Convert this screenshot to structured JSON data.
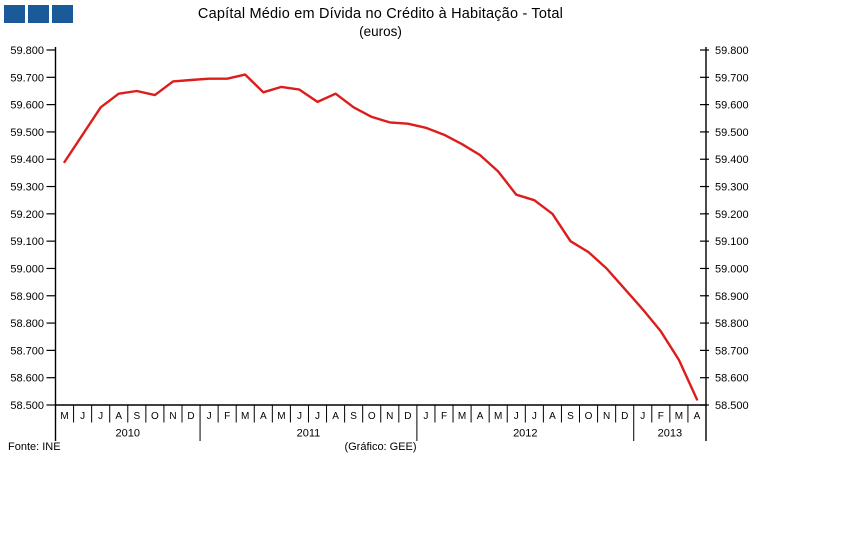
{
  "logo": {
    "color": "#1A5A99",
    "square_count": 3
  },
  "title": "Capítal Médio em Dívida no Crédito à Habitação - Total",
  "subtitle": "(euros)",
  "footer": {
    "source": "Fonte: INE",
    "credit": "(Gráfico: GEE)"
  },
  "chart_data": {
    "type": "line",
    "title": "Capítal Médio em Dívida no Crédito à Habitação - Total",
    "subtitle": "(euros)",
    "series_name": "Capital médio em dívida (euros)",
    "series_color": "#DD1C1C",
    "axis_color": "#000000",
    "ylim": [
      58500,
      59800
    ],
    "ytick_step": 100,
    "ytick_labels": [
      "59.800",
      "59.700",
      "59.600",
      "59.500",
      "59.400",
      "59.300",
      "59.200",
      "59.100",
      "59.000",
      "58.900",
      "58.800",
      "58.700",
      "58.600",
      "58.500"
    ],
    "y_axis_sides": "both",
    "grid": false,
    "legend": "none",
    "years": [
      {
        "label": "2010",
        "months": [
          "M",
          "J",
          "J",
          "A",
          "S",
          "O",
          "N",
          "D"
        ],
        "values": [
          59390,
          59490,
          59590,
          59640,
          59650,
          59635,
          59685,
          59690
        ]
      },
      {
        "label": "2011",
        "months": [
          "J",
          "F",
          "M",
          "A",
          "M",
          "J",
          "J",
          "A",
          "S",
          "O",
          "N",
          "D"
        ],
        "values": [
          59695,
          59695,
          59710,
          59645,
          59665,
          59655,
          59610,
          59640,
          59590,
          59555,
          59535,
          59530
        ]
      },
      {
        "label": "2012",
        "months": [
          "J",
          "F",
          "M",
          "A",
          "M",
          "J",
          "J",
          "A",
          "S",
          "O",
          "N",
          "D"
        ],
        "values": [
          59515,
          59490,
          59455,
          59415,
          59355,
          59270,
          59250,
          59200,
          59100,
          59060,
          59000,
          58925
        ]
      },
      {
        "label": "2013",
        "months": [
          "J",
          "F",
          "M",
          "A"
        ],
        "values": [
          58850,
          58770,
          58665,
          58520
        ]
      }
    ]
  }
}
